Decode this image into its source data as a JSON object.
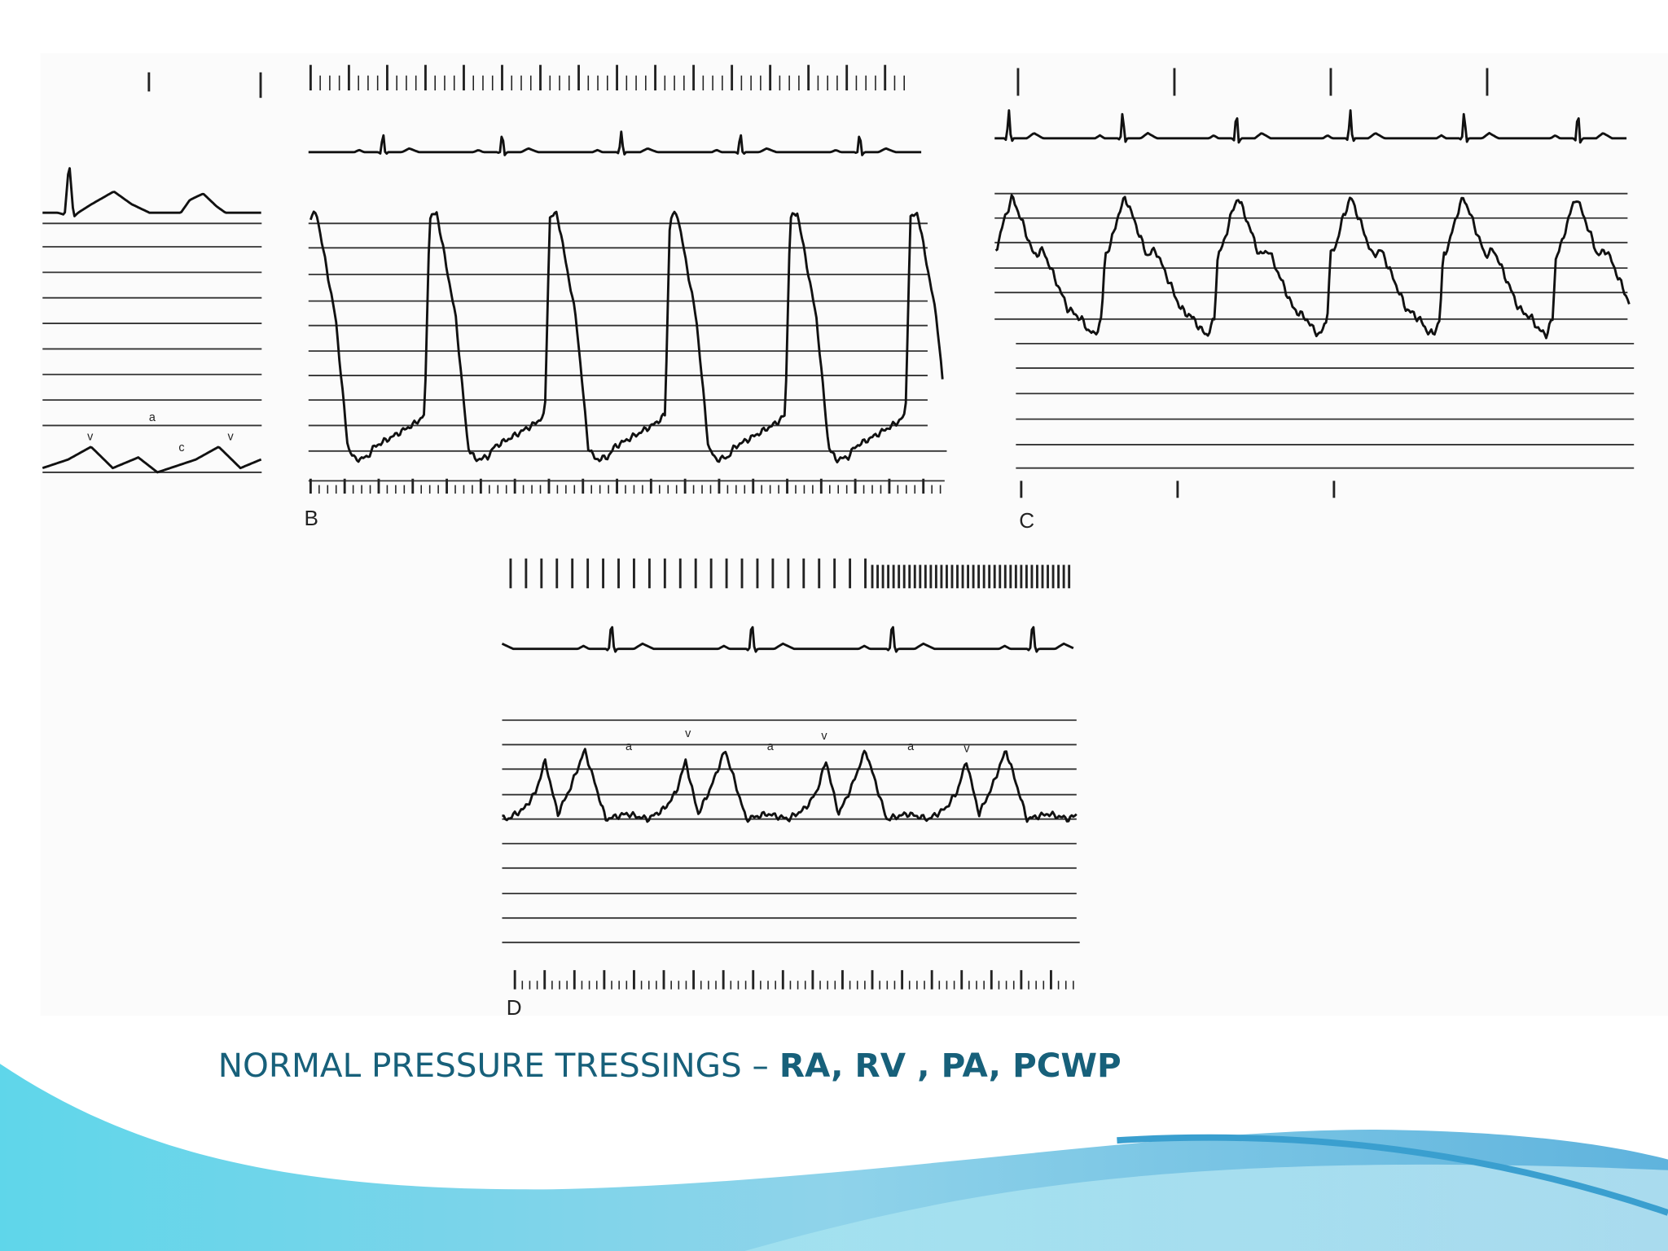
{
  "caption": {
    "text": "NORMAL PRESSURE TRESSINGS –",
    "emphasis": "RA, RV , PA, PCWP"
  },
  "panels": [
    {
      "wave_labels": [
        "v",
        "a",
        "c",
        "v"
      ]
    },
    {
      "label": "B"
    },
    {
      "label": "C"
    },
    {
      "label": "D",
      "wave_labels": [
        "a",
        "v",
        "a",
        "v",
        "a",
        "v"
      ]
    }
  ]
}
